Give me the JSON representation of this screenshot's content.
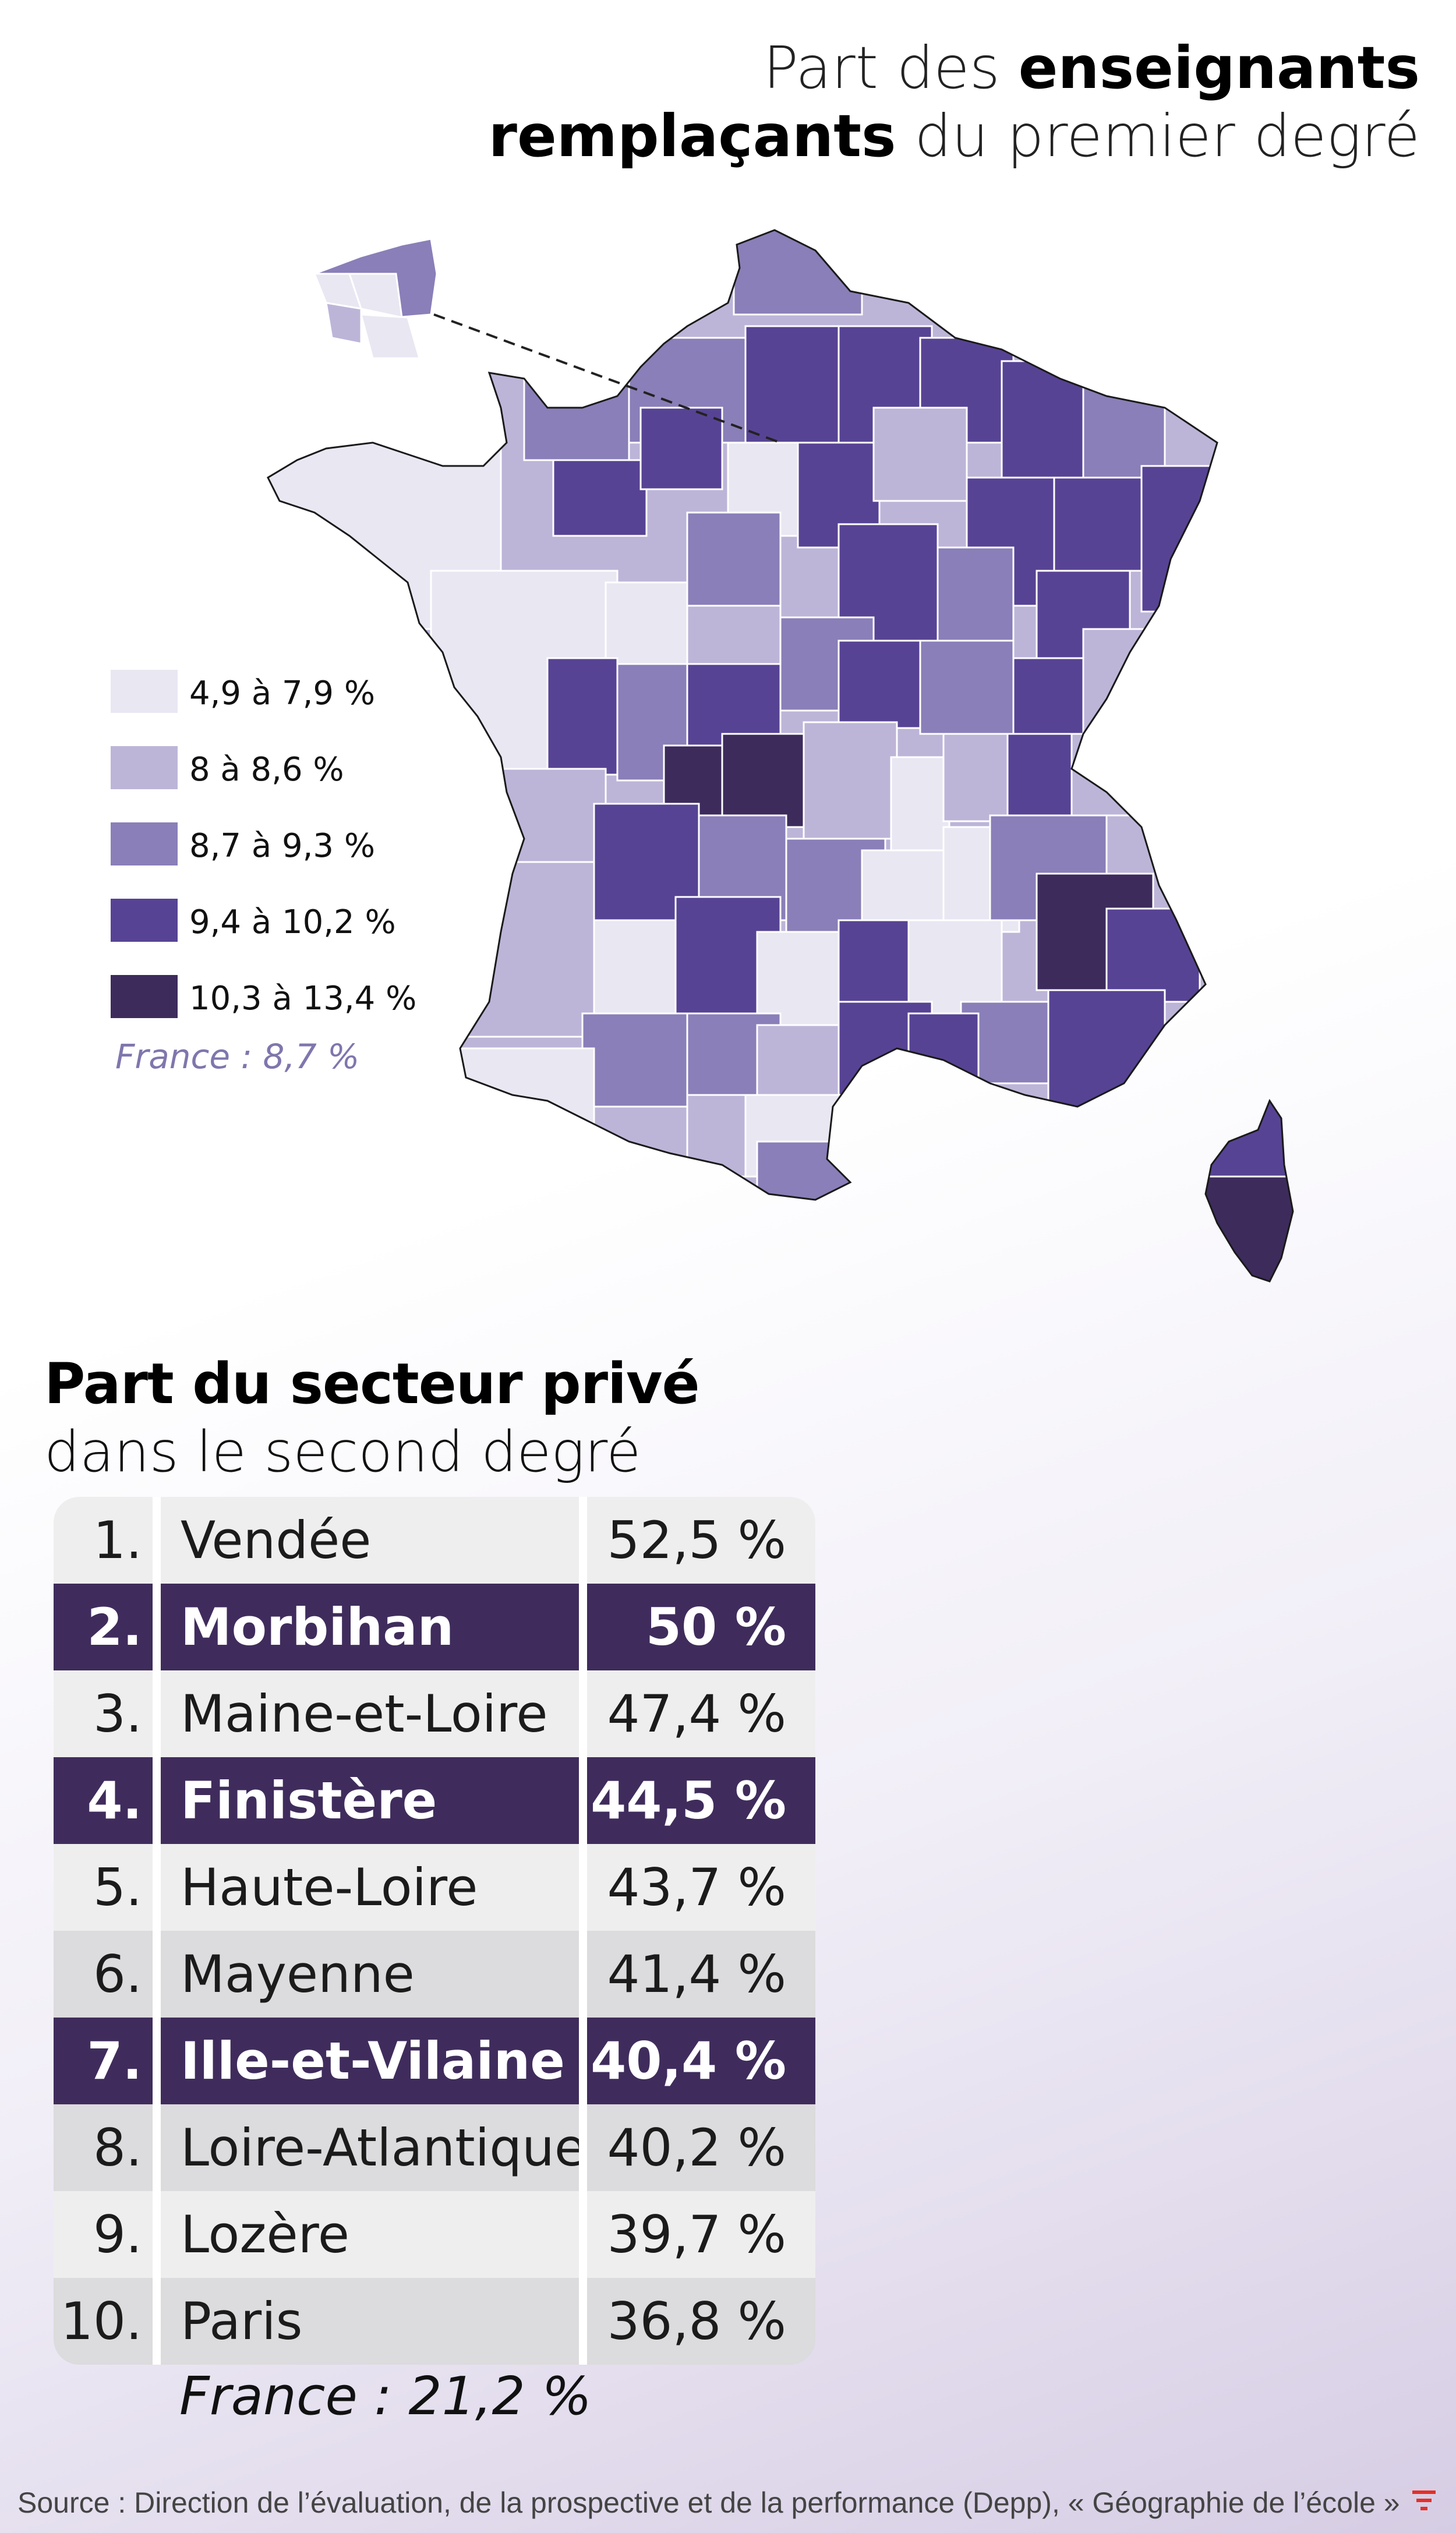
{
  "map": {
    "title_regular_1": "Part des ",
    "title_bold_1": "enseignants",
    "title_bold_2": "remplaçants",
    "title_regular_2": " du premier degré",
    "legend": [
      {
        "label": "4,9 à 7,9 %",
        "color": "#e9e7f2"
      },
      {
        "label": "8 à 8,6 %",
        "color": "#bdb5d8"
      },
      {
        "label": "8,7 à 9,3 %",
        "color": "#8a7fb8"
      },
      {
        "label": "9,4 à 10,2 %",
        "color": "#574394"
      },
      {
        "label": "10,3 à 13,4 %",
        "color": "#3d2b5c"
      }
    ],
    "france_note": "France : 8,7 %"
  },
  "table": {
    "title_bold": "Part du secteur privé",
    "title_regular": "dans le second degré",
    "rows": [
      {
        "rank": "1.",
        "name": "Vendée",
        "value": "52,5 %",
        "highlight": false
      },
      {
        "rank": "2.",
        "name": "Morbihan",
        "value": "50 %",
        "highlight": true
      },
      {
        "rank": "3.",
        "name": "Maine-et-Loire",
        "value": "47,4 %",
        "highlight": false
      },
      {
        "rank": "4.",
        "name": "Finistère",
        "value": "44,5 %",
        "highlight": true
      },
      {
        "rank": "5.",
        "name": "Haute-Loire",
        "value": "43,7 %",
        "highlight": false
      },
      {
        "rank": "6.",
        "name": "Mayenne",
        "value": "41,4 %",
        "highlight": false
      },
      {
        "rank": "7.",
        "name": "Ille-et-Vilaine",
        "value": "40,4 %",
        "highlight": true
      },
      {
        "rank": "8.",
        "name": "Loire-Atlantique",
        "value": "40,2 %",
        "highlight": false
      },
      {
        "rank": "9.",
        "name": "Lozère",
        "value": "39,7 %",
        "highlight": false
      },
      {
        "rank": "10.",
        "name": "Paris",
        "value": "36,8 %",
        "highlight": false
      }
    ],
    "france_note": "France : 21,2 %"
  },
  "source": "Source : Direction de l’évaluation, de la prospective et de la performance (Depp), « Géographie de l’école »"
}
